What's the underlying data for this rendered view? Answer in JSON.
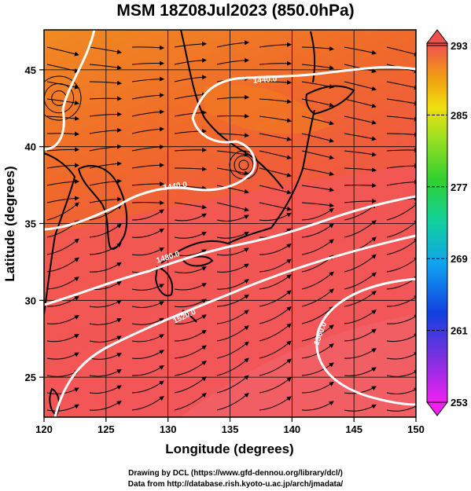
{
  "title": "MSM 18Z08Jul2023 (850.0hPa)",
  "xaxis": {
    "label": "Longitude (degrees)",
    "min": 120,
    "max": 150,
    "ticks": [
      "120",
      "125",
      "130",
      "135",
      "140",
      "145",
      "150"
    ]
  },
  "yaxis": {
    "label": "Latitude  (degrees)",
    "min": 22.4,
    "max": 47.6,
    "ticks": [
      "25",
      "30",
      "35",
      "40",
      "45"
    ]
  },
  "colorbar": {
    "min": 253,
    "max": 293,
    "labels": [
      "293",
      "285",
      "277",
      "269",
      "261",
      "253"
    ]
  },
  "contour_labels": [
    "1440.0",
    "1440.0",
    "1480.0",
    "1520.0",
    "1560.0"
  ],
  "footer": {
    "line1": "Drawing by DCL (https://www.gfd-dennou.org/library/dcl/)",
    "line2": "Data from http://database.rish.kyoto-u.ac.jp/arch/jmadata/"
  },
  "colors": {
    "warm_field": "#f05a40",
    "hot_field": "#f07a20",
    "contour": "#ffffff",
    "coast": "#000000"
  }
}
